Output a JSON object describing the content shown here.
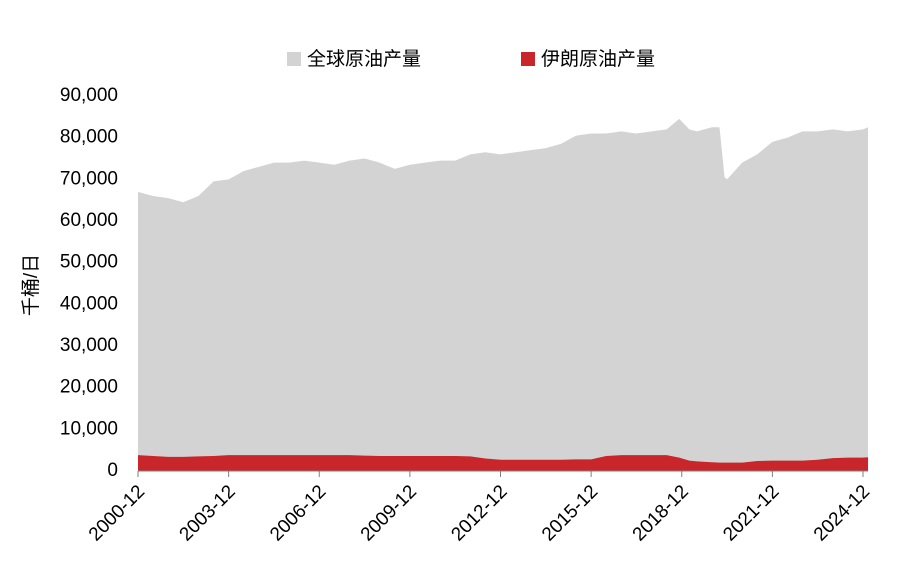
{
  "chart_data": {
    "type": "area",
    "y_label": "千桶/日",
    "x": [
      "2000-12",
      "2001-06",
      "2001-12",
      "2002-06",
      "2002-12",
      "2003-06",
      "2003-12",
      "2004-06",
      "2004-12",
      "2005-06",
      "2005-12",
      "2006-06",
      "2006-12",
      "2007-06",
      "2007-12",
      "2008-06",
      "2008-12",
      "2009-06",
      "2009-12",
      "2010-06",
      "2010-12",
      "2011-06",
      "2011-12",
      "2012-06",
      "2012-12",
      "2013-06",
      "2013-12",
      "2014-06",
      "2014-12",
      "2015-06",
      "2015-12",
      "2016-06",
      "2016-12",
      "2017-06",
      "2017-12",
      "2018-06",
      "2018-11",
      "2019-03",
      "2019-06",
      "2019-12",
      "2020-03",
      "2020-05",
      "2020-06",
      "2020-12",
      "2021-06",
      "2021-12",
      "2022-06",
      "2022-12",
      "2023-06",
      "2023-12",
      "2024-06",
      "2024-12",
      "2025-02"
    ],
    "series": [
      {
        "name": "全球原油产量",
        "color": "#d3d3d3",
        "values": [
          67000,
          66000,
          65500,
          64500,
          66000,
          69500,
          70000,
          72000,
          73000,
          74000,
          74000,
          74500,
          74000,
          73500,
          74500,
          75000,
          74000,
          72500,
          73500,
          74000,
          74500,
          74500,
          76000,
          76500,
          76000,
          76500,
          77000,
          77500,
          78500,
          80500,
          81000,
          81000,
          81500,
          81000,
          81500,
          82000,
          84500,
          82000,
          81500,
          82500,
          82500,
          70500,
          70000,
          74000,
          76000,
          79000,
          80000,
          81500,
          81500,
          82000,
          81500,
          82000,
          82500
        ]
      },
      {
        "name": "伊朗原油产量",
        "color": "#c8262a",
        "values": [
          3800,
          3600,
          3400,
          3400,
          3500,
          3600,
          3800,
          3800,
          3800,
          3800,
          3800,
          3800,
          3800,
          3800,
          3800,
          3700,
          3600,
          3600,
          3600,
          3600,
          3600,
          3600,
          3500,
          3000,
          2700,
          2700,
          2700,
          2700,
          2700,
          2800,
          2800,
          3600,
          3800,
          3800,
          3800,
          3800,
          3200,
          2500,
          2300,
          2100,
          2000,
          2000,
          2000,
          2000,
          2400,
          2500,
          2500,
          2500,
          2700,
          3100,
          3200,
          3200,
          3300
        ]
      }
    ],
    "xlim": [
      "2000-12",
      "2025-02"
    ],
    "xticks": [
      "2000-12",
      "2003-12",
      "2006-12",
      "2009-12",
      "2012-12",
      "2015-12",
      "2018-12",
      "2021-12",
      "2024-12"
    ],
    "ylim": [
      0,
      90000
    ],
    "yticks": [
      0,
      {
        "value": 10000,
        "label": "10,000"
      },
      {
        "value": 20000,
        "label": "20,000"
      },
      {
        "value": 30000,
        "label": "30,000"
      },
      {
        "value": 40000,
        "label": "40,000"
      },
      {
        "value": 50000,
        "label": "50,000"
      },
      {
        "value": 60000,
        "label": "60,000"
      },
      {
        "value": 70000,
        "label": "70,000"
      },
      {
        "value": 80000,
        "label": "80,000"
      },
      {
        "value": 90000,
        "label": "90,000"
      }
    ],
    "legend": "top"
  }
}
